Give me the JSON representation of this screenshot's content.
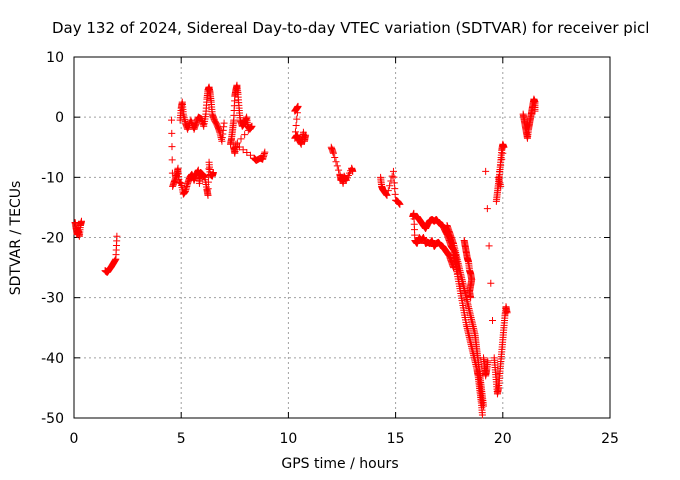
{
  "chart_data": {
    "type": "scatter",
    "title": "Day 132 of 2024, Sidereal Day-to-day VTEC variation (SDTVAR) for receiver picl",
    "xlabel": "GPS time / hours",
    "ylabel": "SDTVAR / TECUs",
    "xlim": [
      0,
      25
    ],
    "ylim": [
      -50,
      10
    ],
    "xticks": [
      0,
      5,
      10,
      15,
      20,
      25
    ],
    "yticks": [
      10,
      0,
      -10,
      -20,
      -30,
      -40,
      -50
    ],
    "grid": true,
    "marker": "+",
    "series": [
      {
        "name": "SDTVAR",
        "color": "#ff0000",
        "segments": [
          [
            [
              0.05,
              -17.5
            ],
            [
              0.1,
              -18.5
            ],
            [
              0.15,
              -19.5
            ],
            [
              0.2,
              -18.8
            ],
            [
              0.25,
              -19.8
            ],
            [
              0.3,
              -18.0
            ],
            [
              0.35,
              -17.3
            ]
          ],
          [
            [
              1.45,
              -25.5
            ],
            [
              1.55,
              -25.8
            ],
            [
              1.65,
              -25.3
            ],
            [
              1.75,
              -24.8
            ],
            [
              1.85,
              -24.2
            ],
            [
              1.95,
              -23.6
            ],
            [
              2.0,
              -19.8
            ]
          ],
          [
            [
              4.55,
              -0.5
            ],
            [
              4.6,
              -11.5
            ],
            [
              4.7,
              -10.5
            ],
            [
              4.8,
              -9.5
            ],
            [
              4.85,
              -8.5
            ],
            [
              4.9,
              -10.8
            ],
            [
              5.0,
              -11.0
            ],
            [
              5.1,
              -12.8
            ],
            [
              5.2,
              -12.3
            ],
            [
              5.3,
              -11.0
            ],
            [
              5.4,
              -10.0
            ],
            [
              5.5,
              -9.5
            ],
            [
              5.6,
              -10.5
            ],
            [
              5.7,
              -9.5
            ],
            [
              5.8,
              -8.8
            ],
            [
              5.85,
              -11.0
            ],
            [
              5.9,
              -9.2
            ],
            [
              6.0,
              -9.5
            ],
            [
              6.1,
              -10.0
            ],
            [
              6.2,
              -12.0
            ],
            [
              6.25,
              -13.0
            ],
            [
              6.3,
              -7.5
            ],
            [
              6.35,
              -9.5
            ],
            [
              6.45,
              -9.8
            ],
            [
              6.5,
              -9.2
            ]
          ],
          [
            [
              4.95,
              -0.5
            ],
            [
              5.0,
              1.5
            ],
            [
              5.05,
              2.5
            ],
            [
              5.1,
              0.5
            ],
            [
              5.2,
              -1.0
            ],
            [
              5.3,
              -2.0
            ],
            [
              5.45,
              -0.5
            ],
            [
              5.6,
              -2.0
            ],
            [
              5.7,
              -1.0
            ],
            [
              5.8,
              0.0
            ],
            [
              5.95,
              -0.3
            ],
            [
              6.05,
              -1.5
            ],
            [
              6.15,
              0.5
            ],
            [
              6.2,
              3.0
            ],
            [
              6.25,
              4.5
            ],
            [
              6.3,
              5.0
            ],
            [
              6.35,
              4.0
            ],
            [
              6.4,
              2.5
            ],
            [
              6.45,
              0.5
            ],
            [
              6.55,
              -0.5
            ],
            [
              6.7,
              -1.5
            ],
            [
              6.8,
              -2.5
            ],
            [
              6.9,
              -4.0
            ],
            [
              7.0,
              -1.0
            ]
          ],
          [
            [
              7.3,
              -4.5
            ],
            [
              7.35,
              -3.5
            ],
            [
              7.4,
              -2.0
            ],
            [
              7.45,
              -0.5
            ],
            [
              7.5,
              3.5
            ],
            [
              7.55,
              4.5
            ],
            [
              7.6,
              5.3
            ],
            [
              7.65,
              3.8
            ],
            [
              7.7,
              1.5
            ],
            [
              7.75,
              -0.5
            ],
            [
              7.85,
              -1.5
            ],
            [
              7.95,
              -1.0
            ],
            [
              8.05,
              0.0
            ],
            [
              8.1,
              -1.5
            ],
            [
              8.2,
              -2.0
            ],
            [
              8.3,
              -1.5
            ],
            [
              7.45,
              -5.0
            ],
            [
              7.5,
              -6.0
            ],
            [
              7.55,
              -4.5
            ],
            [
              8.4,
              -6.8
            ],
            [
              8.5,
              -7.2
            ],
            [
              8.7,
              -6.8
            ],
            [
              8.8,
              -7.0
            ],
            [
              8.9,
              -5.8
            ]
          ],
          [
            [
              10.3,
              1.0
            ],
            [
              10.4,
              1.5
            ],
            [
              10.45,
              1.8
            ],
            [
              10.3,
              -3.5
            ],
            [
              10.4,
              -3.0
            ],
            [
              10.5,
              -3.8
            ],
            [
              10.6,
              -4.5
            ],
            [
              10.7,
              -2.5
            ],
            [
              10.75,
              -4.0
            ],
            [
              10.8,
              -3.0
            ]
          ],
          [
            [
              12.0,
              -5.0
            ],
            [
              12.1,
              -6.0
            ],
            [
              12.4,
              -9.5
            ],
            [
              12.45,
              -10.5
            ],
            [
              12.5,
              -10.0
            ],
            [
              12.55,
              -11.0
            ],
            [
              12.6,
              -9.8
            ],
            [
              12.7,
              -10.5
            ],
            [
              12.95,
              -8.5
            ],
            [
              13.0,
              -9.0
            ]
          ],
          [
            [
              14.3,
              -10.0
            ],
            [
              14.35,
              -11.5
            ],
            [
              14.4,
              -12.0
            ],
            [
              14.5,
              -12.5
            ],
            [
              14.6,
              -13.0
            ],
            [
              14.9,
              -9.0
            ],
            [
              15.0,
              -13.8
            ],
            [
              15.1,
              -14.0
            ],
            [
              15.2,
              -14.5
            ]
          ],
          [
            [
              15.8,
              -16.5
            ],
            [
              15.85,
              -16.0
            ],
            [
              15.9,
              -20.5
            ],
            [
              16.0,
              -21.0
            ],
            [
              16.1,
              -20.0
            ],
            [
              16.2,
              -20.5
            ],
            [
              16.3,
              -20.0
            ],
            [
              16.4,
              -21.0
            ],
            [
              16.5,
              -20.8
            ],
            [
              16.6,
              -21.0
            ],
            [
              16.7,
              -20.5
            ],
            [
              16.8,
              -21.5
            ],
            [
              16.9,
              -21.0
            ],
            [
              17.0,
              -20.8
            ],
            [
              17.1,
              -21.3
            ],
            [
              17.2,
              -21.5
            ],
            [
              17.3,
              -22.0
            ],
            [
              17.4,
              -22.5
            ],
            [
              17.5,
              -23.0
            ],
            [
              17.6,
              -24.0
            ],
            [
              17.7,
              -25.0
            ]
          ],
          [
            [
              16.0,
              -16.5
            ],
            [
              16.1,
              -17.0
            ],
            [
              16.2,
              -17.5
            ],
            [
              16.3,
              -18.0
            ],
            [
              16.4,
              -18.5
            ],
            [
              16.5,
              -17.8
            ],
            [
              16.6,
              -17.2
            ],
            [
              16.7,
              -17.0
            ],
            [
              16.8,
              -17.3
            ],
            [
              16.9,
              -17.0
            ],
            [
              17.0,
              -17.5
            ],
            [
              17.1,
              -17.8
            ],
            [
              17.2,
              -18.0
            ],
            [
              17.3,
              -18.8
            ],
            [
              17.4,
              -19.5
            ],
            [
              17.5,
              -20.5
            ],
            [
              17.6,
              -21.5
            ],
            [
              17.7,
              -22.0
            ],
            [
              17.8,
              -23.0
            ],
            [
              17.85,
              -24.5
            ],
            [
              17.9,
              -26.0
            ]
          ],
          [
            [
              17.4,
              -18.0
            ],
            [
              17.5,
              -19.0
            ],
            [
              17.6,
              -20.0
            ],
            [
              17.7,
              -21.0
            ],
            [
              17.8,
              -22.5
            ],
            [
              17.9,
              -24.0
            ],
            [
              18.0,
              -25.5
            ],
            [
              18.1,
              -27.0
            ],
            [
              18.2,
              -28.5
            ],
            [
              18.3,
              -30.0
            ],
            [
              18.4,
              -31.5
            ],
            [
              18.5,
              -33.0
            ],
            [
              18.6,
              -34.5
            ],
            [
              18.7,
              -36.0
            ],
            [
              18.75,
              -37.5
            ],
            [
              18.8,
              -39.0
            ],
            [
              18.85,
              -40.5
            ],
            [
              18.9,
              -42.0
            ],
            [
              18.95,
              -43.5
            ],
            [
              19.0,
              -45.0
            ],
            [
              19.05,
              -46.5
            ],
            [
              19.1,
              -48.0
            ]
          ],
          [
            [
              17.7,
              -23.0
            ],
            [
              17.8,
              -24.5
            ],
            [
              17.9,
              -26.5
            ],
            [
              18.0,
              -28.5
            ],
            [
              18.1,
              -30.5
            ],
            [
              18.2,
              -32.5
            ],
            [
              18.3,
              -34.5
            ],
            [
              18.4,
              -36.0
            ],
            [
              18.5,
              -37.5
            ],
            [
              18.6,
              -39.0
            ],
            [
              18.7,
              -40.5
            ],
            [
              18.8,
              -42.0
            ],
            [
              18.85,
              -43.0
            ],
            [
              18.9,
              -44.5
            ],
            [
              18.95,
              -46.0
            ],
            [
              19.0,
              -47.5
            ],
            [
              19.05,
              -49.5
            ]
          ],
          [
            [
              18.2,
              -20.5
            ],
            [
              18.25,
              -21.5
            ],
            [
              18.3,
              -22.5
            ],
            [
              18.35,
              -23.5
            ],
            [
              18.4,
              -24.0
            ],
            [
              18.45,
              -25.5
            ],
            [
              18.5,
              -26.0
            ],
            [
              18.55,
              -27.0
            ],
            [
              18.5,
              -28.0
            ],
            [
              18.45,
              -29.0
            ],
            [
              18.5,
              -30.0
            ]
          ],
          [
            [
              19.1,
              -40.0
            ],
            [
              19.15,
              -41.5
            ],
            [
              19.2,
              -43.0
            ],
            [
              19.25,
              -42.0
            ],
            [
              19.3,
              -40.5
            ]
          ],
          [
            [
              19.2,
              -9.0
            ],
            [
              19.6,
              -40.0
            ],
            [
              19.65,
              -42.0
            ],
            [
              19.7,
              -44.0
            ],
            [
              19.75,
              -46.0
            ],
            [
              19.8,
              -45.0
            ],
            [
              19.85,
              -43.0
            ],
            [
              19.9,
              -41.0
            ],
            [
              19.95,
              -39.0
            ],
            [
              20.0,
              -37.0
            ],
            [
              20.05,
              -35.0
            ],
            [
              20.1,
              -33.0
            ],
            [
              20.15,
              -31.5
            ],
            [
              20.2,
              -32.5
            ]
          ],
          [
            [
              19.7,
              -14.0
            ],
            [
              19.75,
              -12.5
            ],
            [
              19.8,
              -11.0
            ],
            [
              19.85,
              -9.5
            ],
            [
              19.9,
              -7.5
            ],
            [
              19.95,
              -5.5
            ],
            [
              20.0,
              -4.5
            ],
            [
              20.05,
              -5.0
            ],
            [
              19.8,
              -10.0
            ],
            [
              19.9,
              -11.5
            ]
          ],
          [
            [
              20.95,
              0.5
            ],
            [
              21.0,
              -0.5
            ],
            [
              21.05,
              -1.5
            ],
            [
              21.1,
              -2.5
            ],
            [
              21.15,
              -3.5
            ],
            [
              21.2,
              -2.0
            ],
            [
              21.25,
              -1.0
            ],
            [
              21.3,
              0.0
            ],
            [
              21.35,
              1.0
            ],
            [
              21.4,
              2.0
            ],
            [
              21.45,
              3.0
            ],
            [
              21.5,
              2.5
            ],
            [
              21.5,
              1.0
            ]
          ]
        ]
      }
    ]
  }
}
